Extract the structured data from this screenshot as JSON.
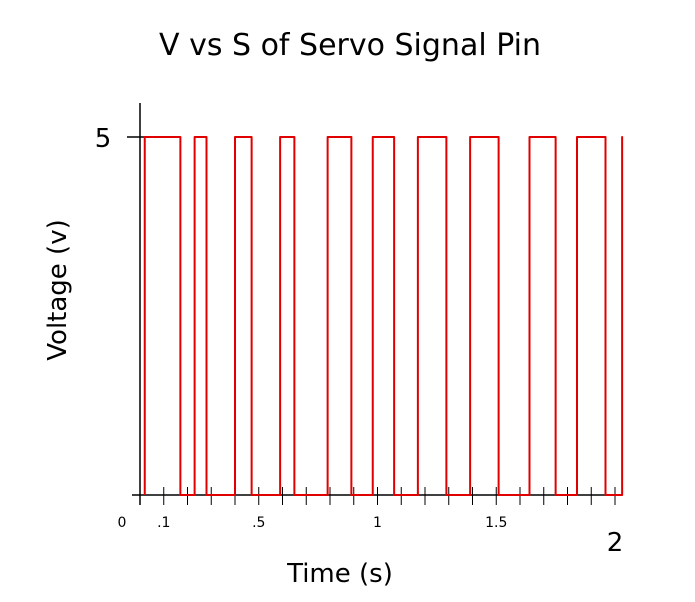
{
  "chart_data": {
    "type": "line",
    "title": "V vs S of Servo Signal Pin",
    "xlabel": "Time (s)",
    "ylabel": "Voltage (v)",
    "xlim": [
      0,
      2
    ],
    "ylim": [
      0,
      5
    ],
    "x_tick_labels": [
      {
        "value": 0,
        "label": "0"
      },
      {
        "value": 0.1,
        "label": ".1"
      },
      {
        "value": 0.5,
        "label": ".5"
      },
      {
        "value": 1,
        "label": "1"
      },
      {
        "value": 1.5,
        "label": "1.5"
      },
      {
        "value": 2,
        "label": "2"
      }
    ],
    "y_tick_labels": [
      {
        "value": 5,
        "label": "5"
      }
    ],
    "grid": false,
    "series": [
      {
        "color": "#e00000",
        "pulses": [
          {
            "start": 0.02,
            "end": 0.17,
            "high": 5
          },
          {
            "start": 0.23,
            "end": 0.28,
            "high": 5
          },
          {
            "start": 0.4,
            "end": 0.47,
            "high": 5
          },
          {
            "start": 0.59,
            "end": 0.65,
            "high": 5
          },
          {
            "start": 0.79,
            "end": 0.89,
            "high": 5
          },
          {
            "start": 0.98,
            "end": 1.07,
            "high": 5
          },
          {
            "start": 1.17,
            "end": 1.29,
            "high": 5
          },
          {
            "start": 1.39,
            "end": 1.51,
            "high": 5
          },
          {
            "start": 1.64,
            "end": 1.75,
            "high": 5
          },
          {
            "start": 1.84,
            "end": 1.96,
            "high": 5
          },
          {
            "start": 2.03,
            "end": 2.03,
            "high": 5
          }
        ],
        "low": 0
      }
    ]
  }
}
